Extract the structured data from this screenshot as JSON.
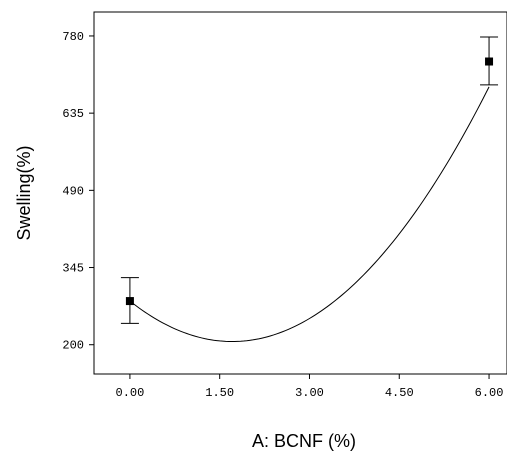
{
  "chart_data": {
    "type": "scatter",
    "xlabel": "A: BCNF (%)",
    "ylabel": "Swelling(%)",
    "xlim": [
      -0.6,
      6.3
    ],
    "ylim": [
      145,
      825
    ],
    "x_ticks": [
      0,
      1.5,
      3,
      4.5,
      6
    ],
    "x_tick_labels": [
      "0.00",
      "1.50",
      "3.00",
      "4.50",
      "6.00"
    ],
    "y_ticks": [
      200,
      345,
      490,
      635,
      780
    ],
    "y_tick_labels": [
      "200",
      "345",
      "490",
      "635",
      "780"
    ],
    "grid": false,
    "points": [
      {
        "x": 0,
        "y": 282,
        "err_low": 240,
        "err_high": 326
      },
      {
        "x": 6,
        "y": 732,
        "err_low": 688,
        "err_high": 778
      }
    ],
    "fit_curve": {
      "x_start": 0,
      "x_end": 6,
      "x_min": 1.71,
      "y_min": 206
    }
  }
}
